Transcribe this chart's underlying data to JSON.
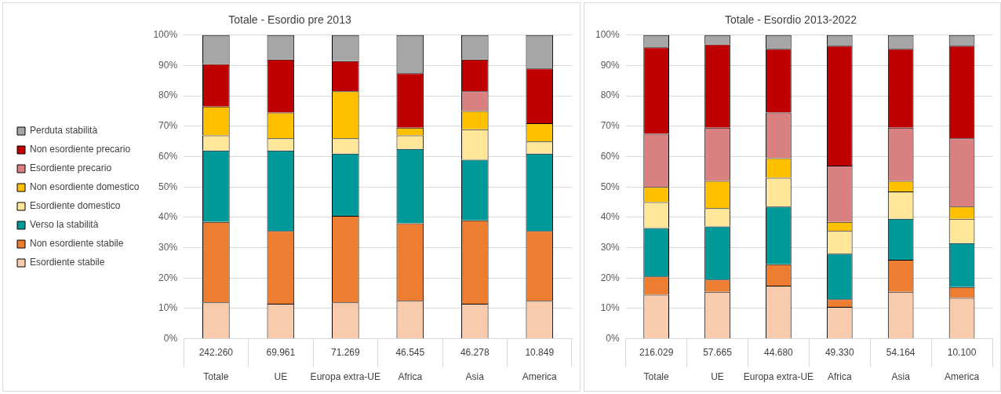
{
  "chart_data": [
    {
      "type": "bar",
      "title": "Totale - Esordio pre 2013",
      "stacked": true,
      "legend": "left",
      "grid": "y",
      "categories": [
        "Totale",
        "UE",
        "Europa extra-UE",
        "Africa",
        "Asia",
        "America"
      ],
      "annotations": [
        "242.260",
        "69.961",
        "71.269",
        "46.545",
        "46.278",
        "10.849"
      ],
      "ylim": [
        0,
        100
      ],
      "yticks": [
        {
          "value": 0,
          "label": "0%"
        },
        {
          "value": 10,
          "label": "10%"
        },
        {
          "value": 20,
          "label": "20%"
        },
        {
          "value": 30,
          "label": "30%"
        },
        {
          "value": 40,
          "label": "40%"
        },
        {
          "value": 50,
          "label": "50%"
        },
        {
          "value": 60,
          "label": "60%"
        },
        {
          "value": 70,
          "label": "70%"
        },
        {
          "value": 80,
          "label": "80%"
        },
        {
          "value": 90,
          "label": "90%"
        },
        {
          "value": 100,
          "label": "100%"
        }
      ],
      "series": [
        {
          "name": "Esordiente stabile",
          "color": "#f8cbad",
          "values": [
            12,
            11.5,
            12,
            12.5,
            11.5,
            12.5
          ]
        },
        {
          "name": "Non esordiente stabile",
          "color": "#ed7d31",
          "values": [
            26.5,
            24,
            28.5,
            25.5,
            27.5,
            23
          ]
        },
        {
          "name": "Verso la stabilità",
          "color": "#009999",
          "values": [
            23.5,
            26.5,
            20.5,
            24.5,
            20,
            25.5
          ]
        },
        {
          "name": "Esordiente domestico",
          "color": "#ffe699",
          "values": [
            5,
            4,
            5,
            4.5,
            10,
            4
          ]
        },
        {
          "name": "Non esordiente domestico",
          "color": "#ffc000",
          "values": [
            9.5,
            8.5,
            15.5,
            2.5,
            6,
            6
          ]
        },
        {
          "name": "Esordiente precario",
          "color": "#d98080",
          "values": [
            0,
            0,
            0,
            0,
            6.5,
            0
          ]
        },
        {
          "name": "Non esordiente precario",
          "color": "#c00000",
          "values": [
            14,
            17.5,
            10,
            18,
            10.5,
            18
          ]
        },
        {
          "name": "Perduta stabilità",
          "color": "#a6a6a6",
          "values": [
            9.5,
            8,
            8.5,
            12.5,
            8,
            11
          ]
        }
      ]
    },
    {
      "type": "bar",
      "title": "Totale - Esordio 2013-2022",
      "stacked": true,
      "grid": "y",
      "categories": [
        "Totale",
        "UE",
        "Europa extra-UE",
        "Africa",
        "Asia",
        "America"
      ],
      "annotations": [
        "216.029",
        "57.665",
        "44.680",
        "49.330",
        "54.164",
        "10.100"
      ],
      "ylim": [
        0,
        100
      ],
      "yticks": [
        {
          "value": 0,
          "label": "0%"
        },
        {
          "value": 10,
          "label": "10%"
        },
        {
          "value": 20,
          "label": "20%"
        },
        {
          "value": 30,
          "label": "30%"
        },
        {
          "value": 40,
          "label": "40%"
        },
        {
          "value": 50,
          "label": "50%"
        },
        {
          "value": 60,
          "label": "60%"
        },
        {
          "value": 70,
          "label": "70%"
        },
        {
          "value": 80,
          "label": "80%"
        },
        {
          "value": 90,
          "label": "90%"
        },
        {
          "value": 100,
          "label": "100%"
        }
      ],
      "series": [
        {
          "color": "#f8cbad",
          "values": [
            14.5,
            15.5,
            17.5,
            10.5,
            15.5,
            13.5
          ]
        },
        {
          "color": "#ed7d31",
          "values": [
            6,
            4,
            7,
            2.5,
            10.5,
            3.5
          ]
        },
        {
          "color": "#009999",
          "values": [
            16,
            17.5,
            19,
            15,
            13.5,
            14.5
          ]
        },
        {
          "color": "#ffe699",
          "values": [
            8.5,
            6,
            9.5,
            7.5,
            9,
            8
          ]
        },
        {
          "color": "#ffc000",
          "values": [
            5,
            9,
            6.5,
            3,
            3.5,
            4
          ]
        },
        {
          "color": "#d98080",
          "values": [
            17.5,
            17.5,
            15,
            18.5,
            17.5,
            22.5
          ]
        },
        {
          "color": "#c00000",
          "values": [
            28.5,
            27.5,
            21,
            39.5,
            26,
            30.5
          ]
        },
        {
          "color": "#a6a6a6",
          "values": [
            4,
            3,
            4.5,
            3.5,
            4.5,
            3.5
          ]
        }
      ]
    }
  ]
}
